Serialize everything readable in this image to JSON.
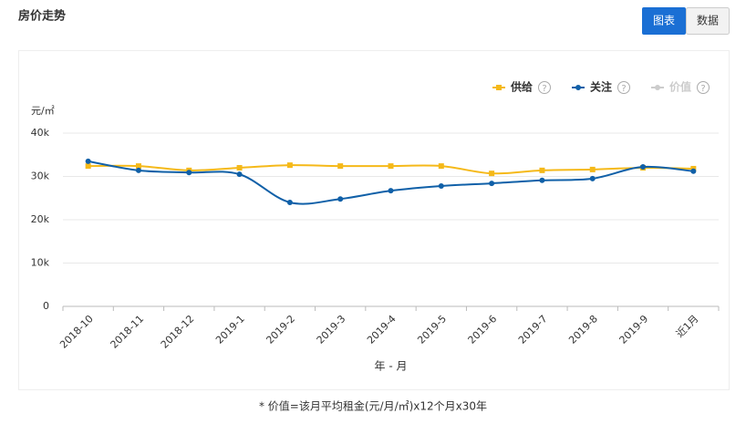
{
  "header": {
    "title": "房价走势",
    "tabs": [
      "图表",
      "数据"
    ]
  },
  "footnote": "* 价值=该月平均租金(元/月/㎡)x12个月x30年",
  "help_icon": "?",
  "chart_data": {
    "type": "line",
    "y_unit": "元/㎡",
    "x_label": "年 - 月",
    "categories": [
      "2018-10",
      "2018-11",
      "2018-12",
      "2019-1",
      "2019-2",
      "2019-3",
      "2019-4",
      "2019-5",
      "2019-6",
      "2019-7",
      "2019-8",
      "2019-9",
      "近1月"
    ],
    "series": [
      {
        "name": "供给",
        "color": "#f5b919",
        "marker": "square",
        "values": [
          32400,
          32400,
          31400,
          32000,
          32600,
          32400,
          32400,
          32400,
          30700,
          31400,
          31600,
          32000,
          31800
        ]
      },
      {
        "name": "关注",
        "color": "#1060a8",
        "marker": "circle",
        "values": [
          33500,
          31400,
          30900,
          30500,
          24000,
          24800,
          26700,
          27800,
          28400,
          29100,
          29500,
          32200,
          31200
        ]
      }
    ],
    "hidden_series": [
      {
        "name": "价值",
        "color": "#cccccc"
      }
    ],
    "ylim": [
      0,
      40000
    ],
    "yticks": [
      0,
      {
        "value": 10000,
        "label": "10k"
      },
      {
        "value": 20000,
        "label": "20k"
      },
      {
        "value": 30000,
        "label": "30k"
      },
      {
        "value": 40000,
        "label": "40k"
      }
    ],
    "grid": true,
    "smooth": true
  }
}
